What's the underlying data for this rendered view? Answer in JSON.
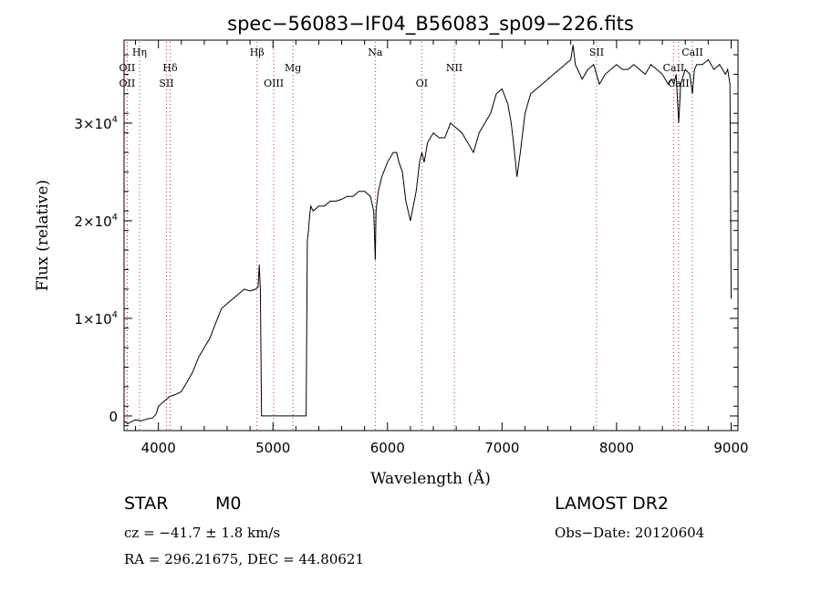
{
  "chart_data": {
    "type": "line",
    "title": "spec−56083−IF04_B56083_sp09−226.fits",
    "xlabel": "Wavelength (Å)",
    "ylabel": "Flux (relative)",
    "xlim": [
      3700,
      9060
    ],
    "ylim": [
      -1500,
      38500
    ],
    "xticks": [
      4000,
      5000,
      6000,
      7000,
      8000,
      9000
    ],
    "xtick_labels": [
      "4000",
      "5000",
      "6000",
      "7000",
      "8000",
      "9000"
    ],
    "yticks": [
      0,
      10000,
      20000,
      30000
    ],
    "ytick_labels": [
      {
        "mantissa": "0",
        "exp": ""
      },
      {
        "mantissa": "1×10",
        "exp": "4"
      },
      {
        "mantissa": "2×10",
        "exp": "4"
      },
      {
        "mantissa": "3×10",
        "exp": "4"
      }
    ],
    "grid": false,
    "series": [
      {
        "x": [
          3700,
          3730,
          3760,
          3800,
          3850,
          3900,
          3950,
          3980,
          4000,
          4050,
          4100,
          4150,
          4200,
          4250,
          4300,
          4350,
          4400,
          4450,
          4500,
          4550,
          4600,
          4650,
          4700,
          4750,
          4800,
          4850,
          4870,
          4880,
          4890,
          4900,
          4910,
          5000,
          5100,
          5200,
          5290,
          5300,
          5310,
          5320,
          5330,
          5350,
          5400,
          5450,
          5500,
          5550,
          5600,
          5650,
          5700,
          5750,
          5800,
          5850,
          5880,
          5893,
          5900,
          5920,
          5950,
          6000,
          6050,
          6080,
          6100,
          6130,
          6160,
          6200,
          6250,
          6280,
          6300,
          6320,
          6350,
          6400,
          6450,
          6500,
          6550,
          6600,
          6650,
          6700,
          6750,
          6800,
          6850,
          6900,
          6950,
          7000,
          7050,
          7080,
          7100,
          7130,
          7160,
          7200,
          7250,
          7300,
          7350,
          7400,
          7450,
          7500,
          7550,
          7600,
          7620,
          7640,
          7660,
          7700,
          7750,
          7800,
          7850,
          7900,
          7950,
          8000,
          8050,
          8100,
          8150,
          8200,
          8250,
          8300,
          8350,
          8400,
          8450,
          8480,
          8500,
          8520,
          8542,
          8560,
          8600,
          8640,
          8662,
          8680,
          8700,
          8750,
          8800,
          8850,
          8900,
          8950,
          8970,
          8990,
          9000
        ],
        "values": [
          -500,
          -800,
          -600,
          -400,
          -500,
          -300,
          -200,
          200,
          1000,
          1500,
          2000,
          2200,
          2500,
          3500,
          4500,
          6000,
          7000,
          8000,
          9500,
          11000,
          11500,
          12000,
          12500,
          13000,
          12800,
          13000,
          13200,
          15500,
          13000,
          0,
          0,
          0,
          0,
          0,
          0,
          18000,
          19000,
          20500,
          21500,
          21000,
          21500,
          21500,
          22000,
          22000,
          22200,
          22500,
          22500,
          23000,
          23000,
          22500,
          21000,
          16000,
          21000,
          23000,
          24500,
          26000,
          27000,
          27000,
          26000,
          25000,
          22000,
          20000,
          23000,
          26000,
          27000,
          26000,
          28000,
          29000,
          28500,
          28500,
          30000,
          29500,
          29000,
          28000,
          27000,
          29000,
          30000,
          31000,
          33000,
          33500,
          32000,
          30000,
          28000,
          24500,
          27000,
          31000,
          33000,
          33500,
          34000,
          34500,
          35000,
          35500,
          36000,
          36500,
          38000,
          36000,
          35500,
          34500,
          35500,
          36000,
          34000,
          35000,
          35500,
          36000,
          35500,
          35500,
          36000,
          35500,
          35000,
          36000,
          35500,
          35000,
          34000,
          34500,
          34000,
          35000,
          30000,
          34000,
          35500,
          35000,
          33000,
          35500,
          36000,
          36000,
          36500,
          35500,
          36000,
          35000,
          35500,
          34000,
          12000
        ]
      }
    ],
    "lines": [
      {
        "x": 3835,
        "label": "Hη",
        "row": 1
      },
      {
        "x": 3727,
        "label": "OII",
        "row": 2
      },
      {
        "x": 3727,
        "label": "OII",
        "row": 3
      },
      {
        "x": 4102,
        "label": "Hδ",
        "row": 2
      },
      {
        "x": 4070,
        "label": "SII",
        "row": 3
      },
      {
        "x": 4861,
        "label": "Hβ",
        "row": 1
      },
      {
        "x": 5007,
        "label": "OIII",
        "row": 3
      },
      {
        "x": 5175,
        "label": "Mg",
        "row": 2
      },
      {
        "x": 5893,
        "label": "Na",
        "row": 1
      },
      {
        "x": 6300,
        "label": "OI",
        "row": 3
      },
      {
        "x": 6583,
        "label": "NII",
        "row": 2
      },
      {
        "x": 7825,
        "label": "SII",
        "row": 1
      },
      {
        "x": 8498,
        "label": "CaII",
        "row": 2
      },
      {
        "x": 8542,
        "label": "CaII",
        "row": 3
      },
      {
        "x": 8662,
        "label": "CaII",
        "row": 1
      }
    ]
  },
  "info": {
    "obj_class": "STAR",
    "subclass": "M0",
    "survey": "LAMOST DR2",
    "cz": "cz = −41.7 ± 1.8 km/s",
    "obs_date": "Obs−Date: 20120604",
    "radec": "RA = 296.21675, DEC =  44.80621"
  }
}
